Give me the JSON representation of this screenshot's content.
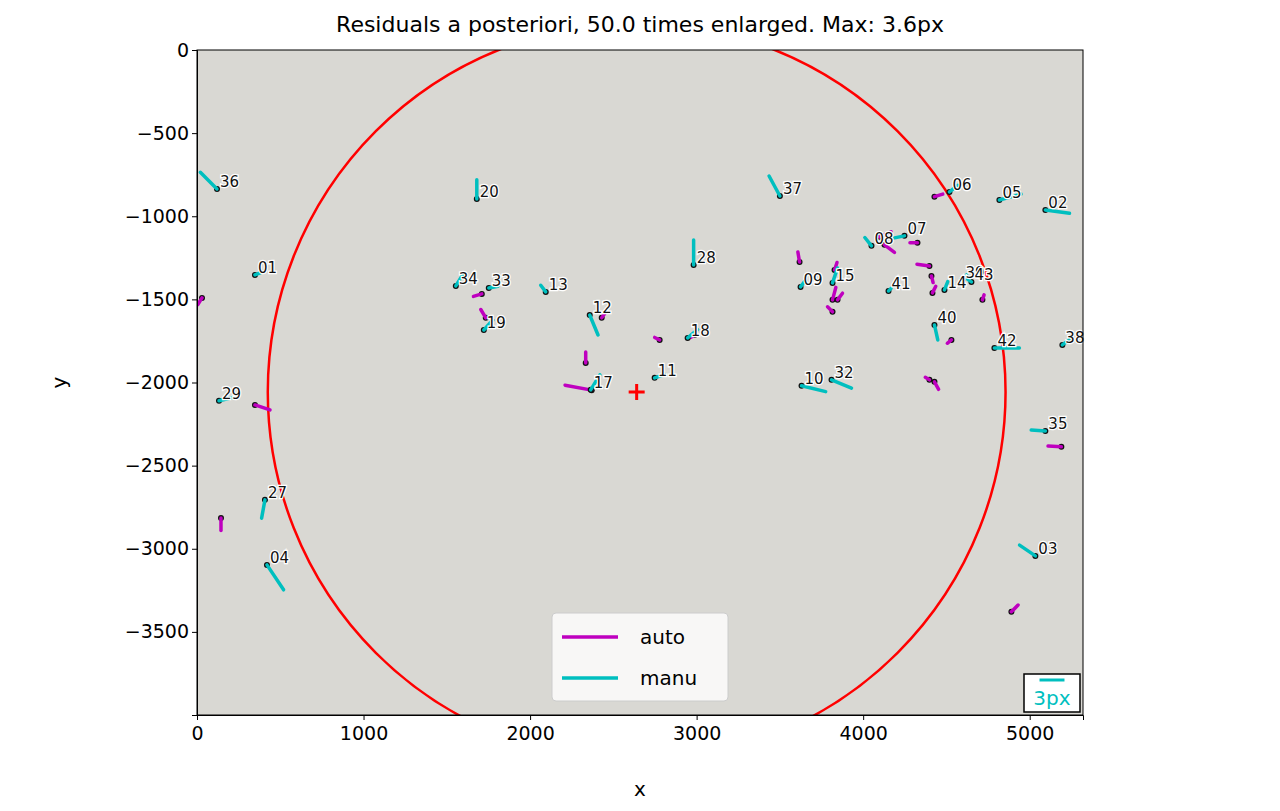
{
  "chart_data": {
    "type": "vector",
    "title": "Residuals a posteriori, 50.0 times enlarged. Max: 3.6px",
    "x_label": "x",
    "y_label": "y",
    "xlim": [
      0,
      5320
    ],
    "ylim": [
      -4000,
      0
    ],
    "xticks": [
      0,
      1000,
      2000,
      3000,
      4000,
      5000
    ],
    "yticks": [
      0,
      {
        "value": -500,
        "label": "−500"
      },
      {
        "value": -1000,
        "label": "−1000"
      },
      {
        "value": -1500,
        "label": "−1500"
      },
      {
        "value": -2000,
        "label": "−2000"
      },
      {
        "value": -2500,
        "label": "−2500"
      },
      {
        "value": -3000,
        "label": "−3000"
      },
      {
        "value": -3500,
        "label": "−3500"
      }
    ],
    "enlargement": 50,
    "legend": "lower center",
    "circle": {
      "center": [
        2640,
        -2057
      ],
      "radius": 2215,
      "color": "#ff0000"
    },
    "scale_bar": {
      "value": 3,
      "label": "3px"
    },
    "series": [
      {
        "name": "auto",
        "color": "#bf00bf",
        "x": [
          30,
          144,
          348,
          1710,
          1734,
          2430,
          2334,
          2370,
          2778,
          2988,
          3618,
          3828,
          3816,
          3816,
          3846,
          4098,
          4128,
          4326,
          4428,
          4398,
          4410,
          4416,
          4530,
          4428,
          4398,
          4716,
          5190,
          4890
        ],
        "values": [
          -1491,
          -2815,
          -2135,
          -1467,
          -1611,
          -1611,
          -1882,
          -2046,
          -1744,
          -1714,
          -1275,
          -1323,
          -1503,
          -1575,
          -1503,
          -1124,
          -1172,
          -1160,
          -882,
          -1299,
          -1359,
          -1461,
          -1744,
          -1996,
          -1984,
          -1503,
          -2387,
          -3379
        ],
        "dx": [
          -0.5,
          0,
          1.8,
          -1.0,
          -0.6,
          0.5,
          0,
          -3.2,
          -0.6,
          -0.5,
          -0.2,
          0.3,
          0.4,
          -0.6,
          0.6,
          1.4,
          1.2,
          -0.9,
          1.0,
          -1.5,
          0.2,
          0.4,
          -0.5,
          0.5,
          -0.5,
          0.2,
          -1.6,
          0.8
        ],
        "dy": [
          -0.8,
          -1.5,
          -0.6,
          -0.3,
          1.0,
          0.7,
          1.3,
          0.6,
          0.3,
          -0.3,
          1.2,
          0.9,
          1.5,
          0.6,
          0.8,
          0.6,
          -0.9,
          0,
          0.3,
          0.2,
          -0.8,
          0.8,
          -0.4,
          -0.9,
          0.3,
          0.6,
          0.1,
          0.8
        ]
      },
      {
        "name": "manu",
        "color": "#00bfbf",
        "labels": [
          "36",
          "20",
          "37",
          "06",
          "05",
          "02",
          "07",
          "08",
          "28",
          "01",
          "34",
          "33",
          "13",
          "09",
          "15",
          "41",
          "14",
          "39",
          "43",
          "19",
          "12",
          "18",
          "40",
          "42",
          "38",
          "11",
          "17",
          "10",
          "32",
          "29",
          "35",
          "27",
          "04",
          "03"
        ],
        "x": [
          120,
          1680,
          3500,
          4518,
          4818,
          5094,
          4248,
          4050,
          2982,
          348,
          1554,
          1752,
          2094,
          3624,
          3816,
          4152,
          4488,
          4596,
          4650,
          1722,
          2358,
          2946,
          4428,
          4788,
          5196,
          2748,
          2364,
          3630,
          3810,
          132,
          5094,
          408,
          420,
          5034
        ],
        "values": [
          -836,
          -896,
          -878,
          -854,
          -902,
          -962,
          -1118,
          -1178,
          -1293,
          -1353,
          -1419,
          -1431,
          -1455,
          -1425,
          -1401,
          -1449,
          -1443,
          -1383,
          -1395,
          -1684,
          -1594,
          -1732,
          -1654,
          -1792,
          -1774,
          -1972,
          -2044,
          -2020,
          -1984,
          -2110,
          -2291,
          -2706,
          -3097,
          -3043
        ],
        "dx": [
          -2.0,
          0,
          -1.3,
          1.0,
          2.6,
          2.9,
          -1.5,
          -0.8,
          0,
          1.0,
          0.8,
          1.1,
          -0.6,
          0.6,
          0.6,
          0.3,
          0.4,
          0.5,
          -0.7,
          1.1,
          1.0,
          1.2,
          0.4,
          3.0,
          0.8,
          1.2,
          1.1,
          2.9,
          2.4,
          1.7,
          -1.7,
          -0.4,
          2.0,
          -1.9
        ],
        "dy": [
          2.0,
          2.3,
          2.4,
          0.8,
          0.7,
          -0.4,
          -0.3,
          1.0,
          3.0,
          0.4,
          1.3,
          0.2,
          0.8,
          0.8,
          1.8,
          0.3,
          1.0,
          0.6,
          0.5,
          1.2,
          -2.4,
          1.0,
          -1.8,
          0,
          0.6,
          0.4,
          1.8,
          -0.7,
          -1.0,
          0.4,
          0.1,
          -2.2,
          -3.0,
          1.3
        ]
      }
    ]
  }
}
